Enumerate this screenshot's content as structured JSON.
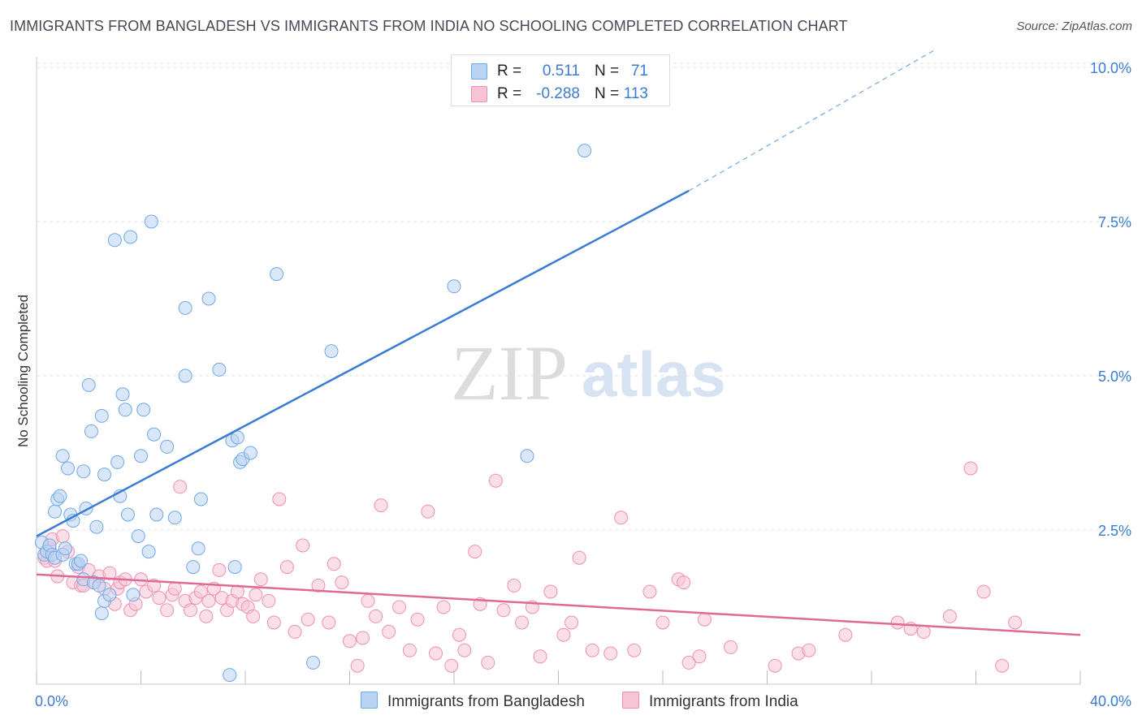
{
  "title": "IMMIGRANTS FROM BANGLADESH VS IMMIGRANTS FROM INDIA NO SCHOOLING COMPLETED CORRELATION CHART",
  "source": "Source: ZipAtlas.com",
  "watermark": {
    "zip": "ZIP",
    "atlas": "atlas"
  },
  "legend": {
    "r_label": "R =",
    "n_label": "N =",
    "rows": [
      {
        "r": "0.511",
        "n": "71",
        "color": "#6fa8e8",
        "fill": "#b9d3f3"
      },
      {
        "r": "-0.288",
        "n": "113",
        "color": "#ee8fb0",
        "fill": "#f7c4d6"
      }
    ]
  },
  "bottom_legend": [
    {
      "label": "Immigrants from Bangladesh",
      "color": "#6fa8e8",
      "fill": "#b9d3f3"
    },
    {
      "label": "Immigrants from India",
      "color": "#ee8fb0",
      "fill": "#f7c4d6"
    }
  ],
  "chart_data": {
    "type": "scatter",
    "title": "IMMIGRANTS FROM BANGLADESH VS IMMIGRANTS FROM INDIA NO SCHOOLING COMPLETED CORRELATION CHART",
    "xlabel": "",
    "ylabel": "No Schooling Completed",
    "xlim": [
      0,
      40
    ],
    "ylim": [
      0,
      10.5
    ],
    "x_tick_labels": [
      "0.0%",
      "40.0%"
    ],
    "y_ticks": [
      2.5,
      5.0,
      7.5,
      10.0
    ],
    "y_tick_labels": [
      "2.5%",
      "5.0%",
      "7.5%",
      "10.0%"
    ],
    "grid": true,
    "series": [
      {
        "name": "Immigrants from Bangladesh",
        "color": "#3a7bd5",
        "marker_stroke": "#6fa8e8",
        "marker_fill": "#b9d3f3",
        "trend": {
          "x": [
            0,
            25
          ],
          "y": [
            2.4,
            8.0
          ],
          "dashed_to": [
            34.5,
            10.3
          ]
        },
        "points": [
          [
            0.2,
            2.3
          ],
          [
            0.3,
            2.1
          ],
          [
            0.4,
            2.15
          ],
          [
            0.5,
            2.25
          ],
          [
            0.6,
            2.1
          ],
          [
            0.7,
            2.05
          ],
          [
            0.7,
            2.8
          ],
          [
            0.8,
            3.0
          ],
          [
            0.9,
            3.05
          ],
          [
            1.0,
            2.1
          ],
          [
            1.0,
            3.7
          ],
          [
            1.1,
            2.2
          ],
          [
            1.2,
            3.5
          ],
          [
            1.3,
            2.75
          ],
          [
            1.4,
            2.65
          ],
          [
            1.5,
            1.95
          ],
          [
            1.6,
            1.95
          ],
          [
            1.7,
            2.0
          ],
          [
            1.8,
            3.45
          ],
          [
            1.8,
            1.7
          ],
          [
            1.9,
            2.85
          ],
          [
            2.0,
            4.85
          ],
          [
            2.1,
            4.1
          ],
          [
            2.2,
            1.65
          ],
          [
            2.3,
            2.55
          ],
          [
            2.4,
            1.6
          ],
          [
            2.5,
            4.35
          ],
          [
            2.5,
            1.15
          ],
          [
            2.6,
            3.4
          ],
          [
            2.6,
            1.35
          ],
          [
            2.8,
            1.45
          ],
          [
            3.0,
            7.2
          ],
          [
            3.1,
            3.6
          ],
          [
            3.2,
            3.05
          ],
          [
            3.3,
            4.7
          ],
          [
            3.4,
            4.45
          ],
          [
            3.5,
            2.75
          ],
          [
            3.6,
            7.25
          ],
          [
            3.7,
            1.45
          ],
          [
            3.9,
            2.4
          ],
          [
            4.0,
            3.7
          ],
          [
            4.1,
            4.45
          ],
          [
            4.3,
            2.15
          ],
          [
            4.4,
            7.5
          ],
          [
            4.5,
            4.05
          ],
          [
            4.6,
            2.75
          ],
          [
            5.0,
            3.85
          ],
          [
            5.3,
            2.7
          ],
          [
            5.7,
            6.1
          ],
          [
            5.7,
            5.0
          ],
          [
            6.0,
            1.9
          ],
          [
            6.2,
            2.2
          ],
          [
            6.3,
            3.0
          ],
          [
            6.6,
            6.25
          ],
          [
            7.0,
            5.1
          ],
          [
            7.4,
            0.15
          ],
          [
            7.5,
            3.95
          ],
          [
            7.6,
            1.9
          ],
          [
            7.7,
            4.0
          ],
          [
            7.8,
            3.6
          ],
          [
            7.9,
            3.65
          ],
          [
            8.2,
            3.75
          ],
          [
            9.2,
            6.65
          ],
          [
            10.6,
            0.35
          ],
          [
            11.3,
            5.4
          ],
          [
            16.0,
            6.45
          ],
          [
            18.8,
            3.7
          ],
          [
            21.0,
            8.65
          ]
        ]
      },
      {
        "name": "Immigrants from India",
        "color": "#e06a96",
        "marker_stroke": "#ee8fb0",
        "marker_fill": "#f7c4d6",
        "trend": {
          "x": [
            0,
            40
          ],
          "y": [
            1.78,
            0.8
          ]
        },
        "points": [
          [
            0.3,
            2.05
          ],
          [
            0.4,
            2.0
          ],
          [
            0.5,
            2.2
          ],
          [
            0.6,
            2.35
          ],
          [
            0.7,
            2.0
          ],
          [
            0.8,
            1.75
          ],
          [
            1.0,
            2.4
          ],
          [
            1.2,
            2.15
          ],
          [
            1.4,
            1.65
          ],
          [
            1.6,
            1.9
          ],
          [
            1.7,
            1.6
          ],
          [
            1.8,
            1.6
          ],
          [
            2.0,
            1.85
          ],
          [
            2.2,
            1.65
          ],
          [
            2.4,
            1.75
          ],
          [
            2.6,
            1.55
          ],
          [
            2.8,
            1.8
          ],
          [
            3.0,
            1.3
          ],
          [
            3.1,
            1.55
          ],
          [
            3.2,
            1.65
          ],
          [
            3.4,
            1.7
          ],
          [
            3.6,
            1.2
          ],
          [
            3.8,
            1.3
          ],
          [
            4.0,
            1.7
          ],
          [
            4.2,
            1.5
          ],
          [
            4.5,
            1.6
          ],
          [
            4.7,
            1.4
          ],
          [
            5.0,
            1.2
          ],
          [
            5.2,
            1.45
          ],
          [
            5.3,
            1.55
          ],
          [
            5.5,
            3.2
          ],
          [
            5.7,
            1.35
          ],
          [
            5.9,
            1.2
          ],
          [
            6.1,
            1.4
          ],
          [
            6.3,
            1.5
          ],
          [
            6.5,
            1.1
          ],
          [
            6.6,
            1.35
          ],
          [
            6.8,
            1.55
          ],
          [
            7.0,
            1.85
          ],
          [
            7.1,
            1.4
          ],
          [
            7.3,
            1.2
          ],
          [
            7.5,
            1.35
          ],
          [
            7.7,
            1.5
          ],
          [
            7.9,
            1.3
          ],
          [
            8.1,
            1.25
          ],
          [
            8.3,
            1.1
          ],
          [
            8.4,
            1.45
          ],
          [
            8.6,
            1.7
          ],
          [
            8.9,
            1.35
          ],
          [
            9.1,
            1.0
          ],
          [
            9.3,
            3.0
          ],
          [
            9.6,
            1.9
          ],
          [
            9.9,
            0.85
          ],
          [
            10.2,
            2.25
          ],
          [
            10.4,
            1.05
          ],
          [
            10.8,
            1.6
          ],
          [
            11.2,
            1.0
          ],
          [
            11.4,
            1.95
          ],
          [
            11.7,
            1.65
          ],
          [
            12.0,
            0.7
          ],
          [
            12.3,
            0.3
          ],
          [
            12.5,
            0.75
          ],
          [
            12.7,
            1.35
          ],
          [
            13.0,
            1.1
          ],
          [
            13.2,
            2.9
          ],
          [
            13.5,
            0.85
          ],
          [
            13.9,
            1.25
          ],
          [
            14.3,
            0.55
          ],
          [
            14.6,
            1.05
          ],
          [
            15.0,
            2.8
          ],
          [
            15.3,
            0.5
          ],
          [
            15.6,
            1.25
          ],
          [
            15.9,
            0.3
          ],
          [
            16.2,
            0.8
          ],
          [
            16.4,
            0.55
          ],
          [
            16.8,
            2.15
          ],
          [
            17.0,
            1.3
          ],
          [
            17.3,
            0.35
          ],
          [
            17.6,
            3.3
          ],
          [
            17.9,
            1.2
          ],
          [
            18.3,
            1.6
          ],
          [
            18.6,
            1.0
          ],
          [
            19.0,
            1.25
          ],
          [
            19.3,
            0.45
          ],
          [
            19.7,
            1.5
          ],
          [
            20.2,
            0.8
          ],
          [
            20.5,
            1.0
          ],
          [
            20.8,
            2.05
          ],
          [
            21.3,
            0.55
          ],
          [
            22.0,
            0.5
          ],
          [
            22.4,
            2.7
          ],
          [
            22.9,
            0.55
          ],
          [
            23.5,
            1.5
          ],
          [
            24.0,
            1.0
          ],
          [
            24.6,
            1.7
          ],
          [
            24.8,
            1.65
          ],
          [
            25.0,
            0.35
          ],
          [
            25.4,
            0.45
          ],
          [
            25.6,
            1.05
          ],
          [
            26.6,
            0.6
          ],
          [
            28.3,
            0.3
          ],
          [
            29.2,
            0.5
          ],
          [
            29.6,
            0.55
          ],
          [
            31.0,
            0.8
          ],
          [
            33.0,
            1.0
          ],
          [
            33.5,
            0.9
          ],
          [
            34.0,
            0.85
          ],
          [
            35.0,
            1.1
          ],
          [
            35.8,
            3.5
          ],
          [
            36.3,
            1.5
          ],
          [
            37.0,
            0.3
          ],
          [
            37.5,
            1.0
          ]
        ]
      }
    ]
  }
}
